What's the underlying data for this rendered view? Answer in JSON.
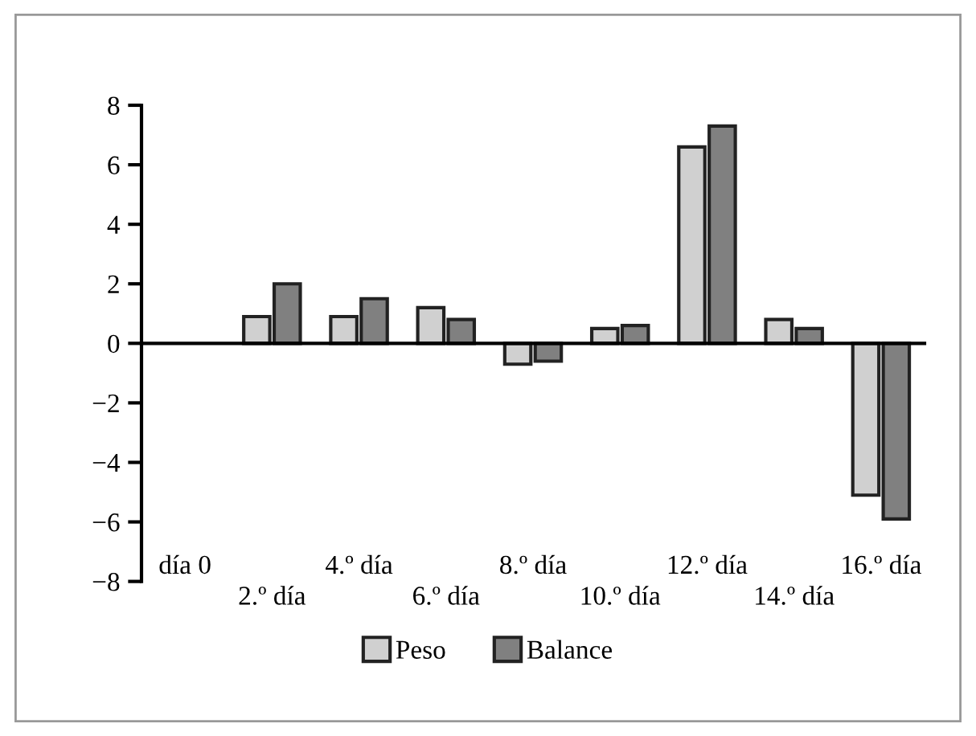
{
  "chart_data": {
    "type": "bar",
    "categories": [
      "día 0",
      "2.º día",
      "4.º día",
      "6.º día",
      "8.º día",
      "10.º día",
      "12.º día",
      "14.º día",
      "16.º día"
    ],
    "series": [
      {
        "name": "Peso",
        "color": "#d0d0d0",
        "values": [
          null,
          0.9,
          0.9,
          1.2,
          -0.7,
          0.5,
          6.6,
          0.8,
          -5.1
        ]
      },
      {
        "name": "Balance",
        "color": "#808080",
        "values": [
          null,
          2.0,
          1.5,
          0.8,
          -0.6,
          0.6,
          7.3,
          0.5,
          -5.9
        ]
      }
    ],
    "ylim": [
      -8,
      8
    ],
    "yticks": [
      {
        "value": -8,
        "label": "−8"
      },
      {
        "value": -6,
        "label": "−6"
      },
      {
        "value": -4,
        "label": "−4"
      },
      {
        "value": -2,
        "label": "−2"
      },
      0,
      2,
      4,
      6,
      8
    ],
    "legend": "bottom"
  }
}
